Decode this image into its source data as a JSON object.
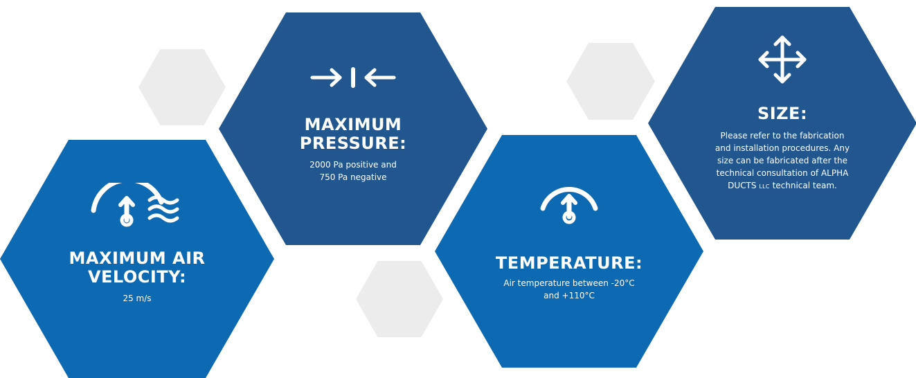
{
  "cards": [
    {
      "id": "air-velocity",
      "icon": "gauge-wind-icon",
      "title_line1": "MAXIMUM AIR",
      "title_line2": "VELOCITY:",
      "desc_line1": "25 m/s"
    },
    {
      "id": "pressure",
      "icon": "pressure-arrows-icon",
      "title_line1": "MAXIMUM",
      "title_line2": "PRESSURE:",
      "desc_line1": "2000 Pa positive and",
      "desc_line2": "750 Pa negative"
    },
    {
      "id": "temperature",
      "icon": "gauge-icon",
      "title_line1": "TEMPERATURE:",
      "desc_line1": "Air temperature between -20°C",
      "desc_line2": "and +110°C"
    },
    {
      "id": "size",
      "icon": "move-arrows-icon",
      "title_line1": "SIZE:",
      "desc_line1": "Please refer to the fabrication",
      "desc_line2": "and installation procedures. Any",
      "desc_line3": "size can be fabricated after the",
      "desc_line4": "technical consultation of ALPHA",
      "desc_line5_a": "DUCTS",
      "desc_line5_llc": "LLC",
      "desc_line5_b": "technical team."
    }
  ],
  "colors": {
    "light_blue": "#0d69b1",
    "dark_blue": "#22568f",
    "grey": "#ececec",
    "text": "#ffffff"
  }
}
